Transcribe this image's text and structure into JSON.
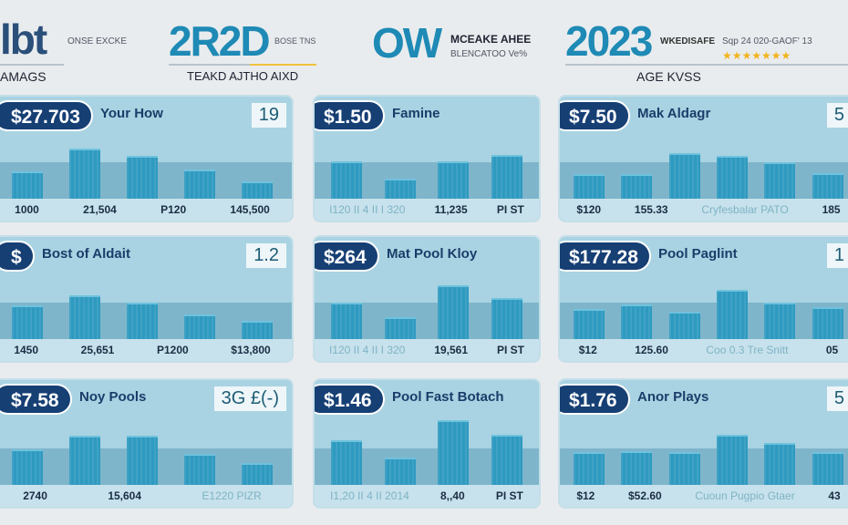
{
  "header": [
    {
      "logo": "lbt",
      "sub": "ONSE EXCKE",
      "caption": "AMAGS"
    },
    {
      "logo": "2R2D",
      "sub": "BOSE TNS",
      "caption": "TEAKD AJTHO AIXD"
    },
    {
      "logo": "OW",
      "sub": "MCEAKE AHEE",
      "sub2": "BLENCATOO Ve%"
    },
    {
      "logo": "2023",
      "sub": "WKEDISAFE",
      "sub2": "Sqp 24 020-GAOF' 13",
      "stars": "★★★★★★★",
      "caption": "AGE KVSS"
    }
  ],
  "panels": [
    {
      "badge": "$27.703",
      "title": "Your How",
      "num": "19",
      "bars": [
        42,
        77,
        65,
        45,
        27
      ],
      "footer": [
        "1000",
        "21,504",
        "P120",
        "145,500"
      ]
    },
    {
      "badge": "$1.50",
      "title": "Famine",
      "num": "",
      "bars": [
        57,
        30,
        57,
        67
      ],
      "footer": [
        "I120 II 4 II I 320",
        "11,235",
        "PI ST"
      ]
    },
    {
      "badge": "$7.50",
      "title": "Mak Aldagr",
      "num": "5",
      "bars": [
        37,
        37,
        69,
        65,
        56,
        39
      ],
      "footer": [
        "$120",
        "155.33",
        "Cryfesbalar PATO",
        "185"
      ]
    },
    {
      "badge": "$",
      "title": "Bost of Aldait",
      "num": "1.2",
      "bars": [
        51,
        67,
        55,
        38,
        28
      ],
      "footer": [
        "1450",
        "25,651",
        "P1200",
        "$13,800"
      ]
    },
    {
      "badge": "$264",
      "title": "Mat Pool Kloy",
      "num": "",
      "bars": [
        56,
        33,
        82,
        63
      ],
      "footer": [
        "I120 II 4 II I 320",
        "19,561",
        "PI ST"
      ]
    },
    {
      "badge": "$177.28",
      "title": "Pool Paglint",
      "num": "1",
      "bars": [
        46,
        53,
        42,
        75,
        56,
        48
      ],
      "footer": [
        "$12",
        "125.60",
        "Coo 0.3 Tre Snitt",
        "05"
      ]
    },
    {
      "badge": "$7.58",
      "title": "Noy Pools",
      "num": "3G £(-)",
      "bars": [
        52,
        72,
        72,
        45,
        32
      ],
      "footer": [
        "2740",
        "15,604",
        "E1220 PIZR"
      ]
    },
    {
      "badge": "$1.46",
      "title": "Pool Fast Botach",
      "num": "",
      "bars": [
        65,
        40,
        95,
        73
      ],
      "footer": [
        "I1,20 II 4 II 2014",
        "8,,40",
        "PI ST"
      ]
    },
    {
      "badge": "$1.76",
      "title": "Anor Plays",
      "num": "5",
      "bars": [
        48,
        50,
        48,
        73,
        62,
        48
      ],
      "footer": [
        "$12",
        "$52.60",
        "Cuoun Pugpio Gtaer",
        "43"
      ]
    }
  ]
}
